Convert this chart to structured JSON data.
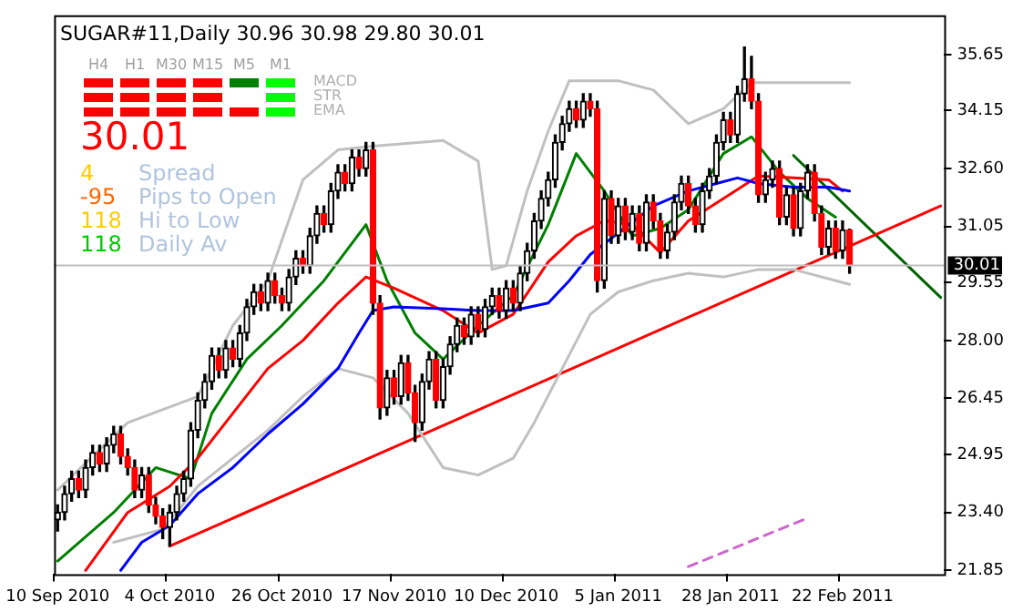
{
  "chart_data": {
    "type": "candlestick",
    "title": "SUGAR#11,Daily  30.96 30.98 29.80 30.01",
    "annotations": [
      "H4",
      "H1",
      "M30",
      "M15",
      "M5",
      "M1",
      "MACD",
      "STR",
      "EMA",
      "30.01",
      "4",
      "Spread",
      "-95",
      "Pips to Open",
      "118",
      "Hi to Low",
      "118",
      "Daily Av"
    ],
    "categories": [
      "10 Sep 2010",
      null,
      null,
      null,
      null,
      null,
      null,
      null,
      null,
      null,
      null,
      null,
      null,
      null,
      null,
      null,
      "4 Oct 2010",
      null,
      null,
      null,
      null,
      null,
      null,
      null,
      null,
      null,
      null,
      null,
      null,
      null,
      null,
      null,
      "26 Oct 2010",
      null,
      null,
      null,
      null,
      null,
      null,
      null,
      null,
      null,
      null,
      null,
      null,
      null,
      null,
      null,
      "17 Nov 2010",
      null,
      null,
      null,
      null,
      null,
      null,
      null,
      null,
      null,
      null,
      null,
      null,
      null,
      null,
      null,
      "10 Dec 2010",
      null,
      null,
      null,
      null,
      null,
      null,
      null,
      null,
      null,
      null,
      null,
      null,
      null,
      null,
      null,
      "5 Jan 2011",
      null,
      null,
      null,
      null,
      null,
      null,
      null,
      null,
      null,
      null,
      null,
      null,
      null,
      null,
      null,
      "28 Jan 2011",
      null,
      null,
      null,
      null,
      null,
      null,
      null,
      null,
      null,
      null,
      null,
      null,
      null,
      null,
      null,
      "22 Feb 2011",
      null,
      null,
      null,
      null,
      null,
      null,
      null,
      null,
      null,
      null,
      null,
      null,
      null,
      null
    ],
    "ohlc": [
      [
        23.2,
        23.6,
        22.9,
        23.4
      ],
      [
        23.4,
        24.1,
        23.2,
        23.9
      ],
      [
        23.9,
        24.5,
        23.7,
        24.3
      ],
      [
        24.3,
        24.5,
        23.8,
        24.0
      ],
      [
        24.0,
        24.8,
        23.8,
        24.6
      ],
      [
        24.6,
        25.2,
        24.4,
        25.0
      ],
      [
        25.0,
        25.2,
        24.5,
        24.7
      ],
      [
        24.7,
        25.4,
        24.5,
        25.2
      ],
      [
        25.2,
        25.7,
        25.0,
        25.5
      ],
      [
        25.5,
        25.7,
        24.7,
        24.9
      ],
      [
        24.9,
        25.1,
        24.4,
        24.6
      ],
      [
        24.6,
        24.8,
        23.8,
        24.0
      ],
      [
        24.0,
        24.6,
        23.8,
        24.4
      ],
      [
        24.4,
        24.6,
        23.4,
        23.6
      ],
      [
        23.6,
        23.8,
        23.1,
        23.3
      ],
      [
        23.3,
        23.5,
        22.7,
        23.0
      ],
      [
        23.0,
        23.6,
        22.5,
        23.4
      ],
      [
        23.4,
        24.1,
        23.2,
        23.9
      ],
      [
        23.9,
        24.5,
        23.7,
        24.3
      ],
      [
        24.3,
        25.8,
        24.1,
        25.6
      ],
      [
        25.6,
        26.6,
        25.4,
        26.4
      ],
      [
        26.4,
        27.1,
        26.2,
        26.9
      ],
      [
        26.9,
        27.8,
        26.7,
        27.6
      ],
      [
        27.6,
        27.8,
        27.0,
        27.2
      ],
      [
        27.2,
        28.0,
        27.0,
        27.8
      ],
      [
        27.8,
        28.0,
        27.3,
        27.5
      ],
      [
        27.5,
        28.4,
        27.3,
        28.2
      ],
      [
        28.2,
        29.1,
        28.0,
        28.9
      ],
      [
        28.9,
        29.5,
        28.7,
        29.3
      ],
      [
        29.3,
        29.5,
        28.8,
        29.0
      ],
      [
        29.0,
        29.8,
        28.8,
        29.6
      ],
      [
        29.6,
        29.8,
        29.0,
        29.2
      ],
      [
        29.2,
        29.4,
        28.8,
        29.0
      ],
      [
        29.0,
        29.9,
        28.8,
        29.7
      ],
      [
        29.7,
        30.4,
        29.5,
        30.2
      ],
      [
        30.2,
        30.4,
        29.8,
        30.0
      ],
      [
        30.0,
        31.0,
        29.8,
        30.8
      ],
      [
        30.8,
        31.6,
        30.6,
        31.4
      ],
      [
        31.4,
        31.6,
        30.9,
        31.1
      ],
      [
        31.1,
        32.2,
        30.9,
        32.0
      ],
      [
        32.0,
        32.7,
        31.8,
        32.5
      ],
      [
        32.5,
        32.7,
        32.0,
        32.2
      ],
      [
        32.2,
        33.1,
        32.0,
        32.9
      ],
      [
        32.9,
        33.1,
        32.4,
        32.6
      ],
      [
        32.6,
        33.3,
        32.4,
        33.1
      ],
      [
        33.1,
        33.3,
        28.7,
        29.0
      ],
      [
        29.0,
        29.2,
        25.9,
        26.2
      ],
      [
        26.2,
        27.2,
        26.0,
        27.0
      ],
      [
        27.0,
        27.2,
        26.3,
        26.5
      ],
      [
        26.5,
        27.6,
        26.3,
        27.4
      ],
      [
        27.4,
        27.6,
        26.4,
        26.6
      ],
      [
        26.6,
        26.8,
        25.3,
        25.8
      ],
      [
        25.8,
        27.1,
        25.6,
        26.9
      ],
      [
        26.9,
        27.7,
        26.7,
        27.5
      ],
      [
        27.5,
        27.7,
        26.2,
        26.4
      ],
      [
        26.4,
        27.5,
        26.2,
        27.3
      ],
      [
        27.3,
        28.1,
        27.1,
        27.9
      ],
      [
        27.9,
        28.6,
        27.7,
        28.4
      ],
      [
        28.4,
        28.6,
        27.9,
        28.1
      ],
      [
        28.1,
        28.9,
        27.9,
        28.7
      ],
      [
        28.7,
        28.9,
        28.1,
        28.3
      ],
      [
        28.3,
        29.1,
        28.1,
        28.9
      ],
      [
        28.9,
        29.4,
        28.7,
        29.2
      ],
      [
        29.2,
        29.4,
        28.6,
        28.8
      ],
      [
        28.8,
        29.6,
        28.6,
        29.4
      ],
      [
        29.4,
        29.6,
        28.8,
        29.0
      ],
      [
        29.0,
        30.0,
        28.8,
        29.8
      ],
      [
        29.8,
        30.6,
        29.6,
        30.4
      ],
      [
        30.4,
        31.4,
        30.2,
        31.2
      ],
      [
        31.2,
        32.0,
        31.0,
        31.8
      ],
      [
        31.8,
        32.5,
        31.6,
        32.3
      ],
      [
        32.3,
        33.5,
        32.1,
        33.3
      ],
      [
        33.3,
        34.0,
        33.1,
        33.8
      ],
      [
        33.8,
        34.4,
        33.6,
        34.2
      ],
      [
        34.2,
        34.4,
        33.7,
        33.9
      ],
      [
        33.9,
        34.6,
        33.7,
        34.4
      ],
      [
        34.4,
        34.6,
        34.0,
        34.2
      ],
      [
        34.2,
        34.4,
        29.3,
        29.6
      ],
      [
        29.6,
        32.0,
        29.4,
        31.8
      ],
      [
        31.8,
        32.0,
        30.6,
        30.8
      ],
      [
        30.8,
        31.8,
        30.6,
        31.6
      ],
      [
        31.6,
        31.8,
        30.7,
        30.9
      ],
      [
        30.9,
        31.6,
        30.7,
        31.4
      ],
      [
        31.4,
        31.6,
        30.4,
        30.6
      ],
      [
        30.6,
        31.9,
        30.4,
        31.7
      ],
      [
        31.7,
        31.9,
        31.0,
        31.2
      ],
      [
        31.2,
        31.4,
        30.2,
        30.4
      ],
      [
        30.4,
        31.1,
        30.2,
        30.9
      ],
      [
        30.9,
        31.9,
        30.7,
        31.7
      ],
      [
        31.7,
        32.4,
        31.5,
        32.2
      ],
      [
        32.2,
        32.4,
        31.4,
        31.6
      ],
      [
        31.6,
        31.8,
        30.9,
        31.1
      ],
      [
        31.1,
        32.2,
        30.9,
        32.0
      ],
      [
        32.0,
        32.6,
        31.8,
        32.4
      ],
      [
        32.4,
        33.5,
        32.2,
        33.3
      ],
      [
        33.3,
        34.1,
        33.1,
        33.9
      ],
      [
        33.9,
        34.1,
        33.3,
        33.5
      ],
      [
        33.5,
        34.8,
        33.3,
        34.6
      ],
      [
        34.6,
        35.85,
        34.4,
        35.0
      ],
      [
        35.0,
        35.6,
        34.2,
        34.4
      ],
      [
        34.4,
        34.6,
        31.7,
        31.9
      ],
      [
        31.9,
        32.5,
        31.7,
        32.3
      ],
      [
        32.3,
        32.8,
        32.1,
        32.6
      ],
      [
        32.6,
        32.8,
        31.1,
        31.3
      ],
      [
        31.3,
        32.1,
        31.1,
        31.9
      ],
      [
        31.9,
        32.1,
        30.8,
        31.0
      ],
      [
        31.0,
        32.2,
        30.8,
        32.0
      ],
      [
        32.0,
        32.7,
        31.8,
        32.5
      ],
      [
        32.5,
        32.7,
        31.2,
        31.4
      ],
      [
        31.4,
        31.6,
        30.3,
        30.5
      ],
      [
        30.5,
        31.2,
        30.3,
        31.0
      ],
      [
        31.0,
        31.2,
        30.2,
        30.4
      ],
      [
        30.4,
        31.2,
        30.2,
        30.96
      ],
      [
        30.96,
        30.98,
        29.8,
        30.01
      ],
      null,
      null,
      null,
      null,
      null,
      null,
      null,
      null,
      null,
      null,
      null,
      null,
      null
    ],
    "series": [
      {
        "type": "line",
        "color": "#0000ff",
        "values": [
          null,
          null,
          null,
          null,
          null,
          null,
          null,
          null,
          null,
          21.85,
          null,
          null,
          22.6,
          null,
          null,
          null,
          23.05,
          null,
          null,
          null,
          23.9,
          null,
          null,
          null,
          null,
          24.6,
          null,
          null,
          null,
          null,
          25.5,
          null,
          null,
          null,
          null,
          26.3,
          null,
          null,
          null,
          null,
          27.25,
          null,
          null,
          28.2,
          null,
          28.8,
          null,
          null,
          28.9,
          null,
          null,
          null,
          null,
          null,
          null,
          28.85,
          null,
          null,
          null,
          null,
          28.8,
          null,
          null,
          null,
          null,
          28.8,
          null,
          null,
          null,
          null,
          29.0,
          null,
          null,
          29.6,
          null,
          null,
          30.3,
          null,
          null,
          null,
          null,
          null,
          null,
          null,
          null,
          31.6,
          null,
          null,
          null,
          null,
          32.0,
          null,
          null,
          null,
          32.2,
          null,
          null,
          32.35,
          null,
          null,
          32.2,
          null,
          null,
          null,
          null,
          32.1,
          null,
          null,
          null,
          null,
          32.1,
          null,
          null,
          32.0,
          null,
          null,
          null,
          null,
          null,
          null,
          null,
          null,
          null,
          null,
          null,
          null,
          null
        ]
      },
      {
        "type": "line",
        "color": "#ff0000",
        "values": [
          null,
          null,
          null,
          null,
          21.85,
          null,
          null,
          null,
          null,
          null,
          23.4,
          null,
          null,
          null,
          null,
          null,
          24.1,
          null,
          null,
          null,
          24.85,
          null,
          null,
          null,
          null,
          26.05,
          null,
          null,
          null,
          null,
          27.25,
          null,
          null,
          null,
          null,
          28.0,
          null,
          null,
          null,
          null,
          29.0,
          null,
          null,
          null,
          29.7,
          null,
          null,
          null,
          29.4,
          null,
          null,
          null,
          null,
          null,
          null,
          28.8,
          null,
          null,
          null,
          null,
          28.2,
          null,
          null,
          null,
          null,
          28.7,
          null,
          null,
          null,
          null,
          30.1,
          null,
          null,
          null,
          30.8,
          null,
          null,
          null,
          31.2,
          null,
          null,
          null,
          31.1,
          null,
          null,
          null,
          30.35,
          null,
          null,
          null,
          31.2,
          null,
          null,
          null,
          null,
          31.8,
          null,
          null,
          null,
          null,
          32.4,
          null,
          null,
          null,
          null,
          32.35,
          null,
          null,
          null,
          null,
          32.3,
          null,
          32.0,
          null,
          null,
          null,
          null,
          null,
          null,
          null,
          null,
          null,
          null,
          null,
          null,
          null,
          null
        ]
      },
      {
        "type": "line",
        "color": "#008000",
        "values": [
          22.1,
          null,
          null,
          null,
          null,
          null,
          null,
          null,
          23.4,
          null,
          null,
          null,
          null,
          null,
          24.6,
          null,
          null,
          null,
          null,
          24.3,
          null,
          null,
          26.05,
          null,
          null,
          null,
          null,
          27.5,
          null,
          null,
          null,
          null,
          28.4,
          null,
          null,
          null,
          null,
          null,
          29.6,
          null,
          null,
          null,
          30.6,
          null,
          31.1,
          null,
          null,
          29.6,
          null,
          null,
          null,
          28.2,
          null,
          null,
          null,
          27.5,
          null,
          null,
          null,
          null,
          28.4,
          null,
          null,
          null,
          null,
          29.2,
          null,
          null,
          null,
          null,
          31.1,
          null,
          null,
          null,
          33.0,
          null,
          null,
          null,
          32.0,
          null,
          null,
          null,
          30.8,
          null,
          null,
          null,
          31.0,
          null,
          null,
          null,
          31.5,
          null,
          null,
          null,
          null,
          33.0,
          null,
          null,
          null,
          33.45,
          null,
          null,
          null,
          32.5,
          null,
          null,
          null,
          31.8,
          null,
          null,
          null,
          31.3,
          null,
          null,
          null,
          null,
          null,
          null,
          null,
          null,
          null,
          null,
          null,
          null,
          null,
          null,
          null
        ]
      },
      {
        "type": "line",
        "color": "#c0c0c0",
        "values": [
          24.0,
          null,
          null,
          null,
          null,
          null,
          null,
          null,
          null,
          null,
          25.8,
          null,
          null,
          null,
          null,
          null,
          null,
          null,
          null,
          null,
          26.5,
          null,
          null,
          null,
          null,
          28.4,
          null,
          null,
          null,
          null,
          29.6,
          null,
          null,
          null,
          null,
          32.3,
          null,
          null,
          null,
          null,
          33.1,
          null,
          null,
          null,
          null,
          33.2,
          null,
          null,
          null,
          null,
          null,
          null,
          null,
          null,
          null,
          33.35,
          null,
          null,
          null,
          null,
          32.8,
          null,
          29.9,
          null,
          30.0,
          null,
          null,
          32.0,
          null,
          null,
          33.6,
          null,
          null,
          34.95,
          null,
          null,
          null,
          null,
          null,
          null,
          34.95,
          null,
          null,
          null,
          null,
          34.7,
          null,
          null,
          null,
          null,
          33.8,
          null,
          null,
          null,
          null,
          34.2,
          null,
          null,
          null,
          34.9,
          null,
          null,
          null,
          null,
          null,
          null,
          null,
          null,
          null,
          null,
          null,
          null,
          null,
          34.9,
          null,
          null,
          null,
          null,
          null,
          null,
          null,
          null,
          null,
          null,
          null,
          null,
          null
        ]
      },
      {
        "type": "line",
        "color": "#c0c0c0",
        "values": [
          null,
          null,
          null,
          null,
          null,
          null,
          null,
          null,
          22.6,
          null,
          null,
          null,
          null,
          null,
          null,
          22.95,
          null,
          null,
          null,
          null,
          24.1,
          null,
          null,
          null,
          null,
          null,
          null,
          null,
          null,
          null,
          25.6,
          null,
          null,
          null,
          null,
          26.5,
          null,
          null,
          null,
          null,
          27.25,
          null,
          null,
          null,
          null,
          27.0,
          null,
          null,
          null,
          null,
          26.05,
          null,
          null,
          null,
          null,
          24.6,
          null,
          null,
          null,
          null,
          24.4,
          null,
          null,
          null,
          null,
          24.85,
          null,
          null,
          25.8,
          null,
          null,
          null,
          27.25,
          null,
          null,
          null,
          28.7,
          null,
          null,
          null,
          29.3,
          null,
          null,
          null,
          null,
          29.6,
          null,
          null,
          null,
          null,
          29.8,
          null,
          null,
          null,
          null,
          29.7,
          null,
          null,
          null,
          null,
          29.9,
          null,
          null,
          null,
          null,
          29.9,
          null,
          null,
          null,
          null,
          null,
          null,
          null,
          29.5,
          null,
          null,
          null,
          null,
          null,
          null,
          null,
          null,
          null,
          null,
          null,
          null,
          null
        ]
      },
      {
        "type": "line",
        "color": "#ff0000",
        "values": [
          null,
          null,
          null,
          null,
          null,
          null,
          null,
          null,
          null,
          null,
          null,
          null,
          null,
          null,
          null,
          null,
          22.5,
          null,
          null,
          null,
          null,
          null,
          null,
          null,
          null,
          null,
          null,
          null,
          null,
          null,
          null,
          null,
          null,
          null,
          null,
          null,
          null,
          null,
          null,
          null,
          null,
          null,
          null,
          null,
          null,
          null,
          null,
          null,
          null,
          null,
          null,
          null,
          null,
          null,
          null,
          null,
          null,
          null,
          null,
          null,
          null,
          null,
          null,
          null,
          null,
          null,
          null,
          null,
          null,
          null,
          null,
          null,
          null,
          null,
          null,
          null,
          null,
          null,
          null,
          null,
          null,
          null,
          null,
          null,
          null,
          null,
          null,
          null,
          null,
          null,
          null,
          null,
          null,
          null,
          null,
          null,
          null,
          null,
          null,
          null,
          null,
          null,
          null,
          null,
          null,
          null,
          null,
          null,
          null,
          null,
          null,
          null,
          null,
          null,
          null,
          null,
          null,
          null,
          null,
          null,
          null,
          null,
          null,
          null,
          null,
          null,
          31.6
        ]
      },
      {
        "type": "line",
        "color": "#006400",
        "values": [
          null,
          null,
          null,
          null,
          null,
          null,
          null,
          null,
          null,
          null,
          null,
          null,
          null,
          null,
          null,
          null,
          null,
          null,
          null,
          null,
          null,
          null,
          null,
          null,
          null,
          null,
          null,
          null,
          null,
          null,
          null,
          null,
          null,
          null,
          null,
          null,
          null,
          null,
          null,
          null,
          null,
          null,
          null,
          null,
          null,
          null,
          null,
          null,
          null,
          null,
          null,
          null,
          null,
          null,
          null,
          null,
          null,
          null,
          null,
          null,
          null,
          null,
          null,
          null,
          null,
          null,
          null,
          null,
          null,
          null,
          null,
          null,
          null,
          null,
          null,
          null,
          null,
          null,
          null,
          null,
          null,
          null,
          null,
          null,
          null,
          null,
          null,
          null,
          null,
          null,
          null,
          null,
          null,
          null,
          null,
          null,
          null,
          null,
          null,
          null,
          null,
          null,
          null,
          null,
          null,
          32.95,
          null,
          null,
          null,
          null,
          null,
          null,
          null,
          null,
          null,
          null,
          null,
          null,
          null,
          null,
          null,
          null,
          null,
          null,
          null,
          null,
          29.15
        ]
      },
      {
        "type": "line",
        "color": "#cc66cc",
        "line_style": "dashed",
        "values": [
          null,
          null,
          null,
          null,
          null,
          null,
          null,
          null,
          null,
          null,
          null,
          null,
          null,
          null,
          null,
          null,
          null,
          null,
          null,
          null,
          null,
          null,
          null,
          null,
          null,
          null,
          null,
          null,
          null,
          null,
          null,
          null,
          null,
          null,
          null,
          null,
          null,
          null,
          null,
          null,
          null,
          null,
          null,
          null,
          null,
          null,
          null,
          null,
          null,
          null,
          null,
          null,
          null,
          null,
          null,
          null,
          null,
          null,
          null,
          null,
          null,
          null,
          null,
          null,
          null,
          null,
          null,
          null,
          null,
          null,
          null,
          null,
          null,
          null,
          null,
          null,
          null,
          null,
          null,
          null,
          null,
          null,
          null,
          null,
          null,
          null,
          null,
          null,
          null,
          null,
          21.95,
          null,
          null,
          null,
          null,
          null,
          null,
          null,
          null,
          null,
          null,
          null,
          null,
          null,
          null,
          null,
          null,
          23.25,
          null,
          null,
          null,
          null,
          null,
          null,
          null,
          null,
          null,
          null,
          null,
          null,
          null,
          null,
          null,
          null,
          null,
          null,
          null
        ]
      }
    ],
    "ref_lines": [
      {
        "axis": "y",
        "value": 30.01,
        "label": "30.01",
        "color": "#c0c0c0"
      }
    ],
    "ylim": [
      21.75,
      36.7
    ],
    "yticks": [
      21.85,
      {
        "value": 23.4,
        "label": "23.40"
      },
      24.95,
      26.45,
      {
        "value": 28.0,
        "label": "28.00"
      },
      29.55,
      31.05,
      {
        "value": 32.6,
        "label": "32.60"
      },
      34.15,
      35.65
    ],
    "grid": false,
    "legend": false
  }
}
